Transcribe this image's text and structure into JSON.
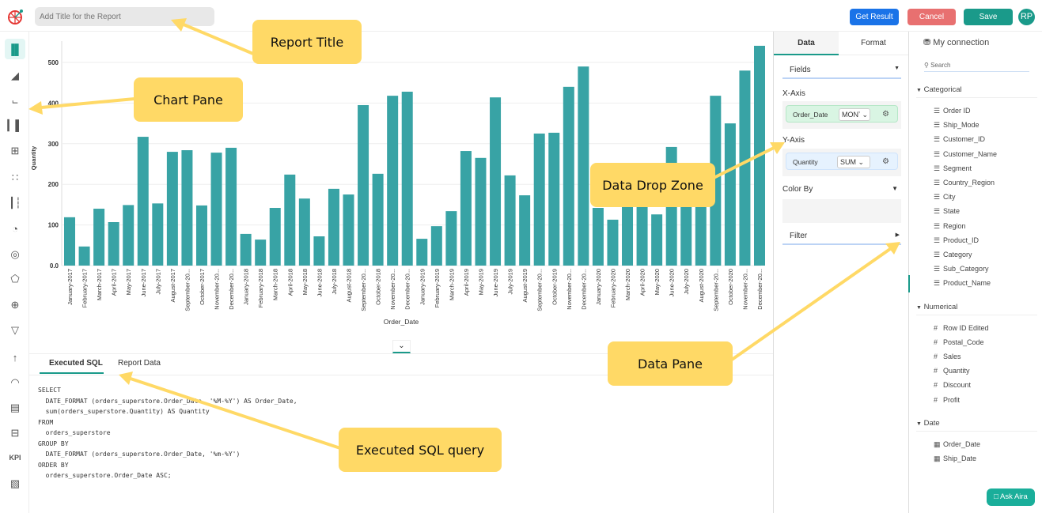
{
  "header": {
    "title_placeholder": "Add Title for the Report",
    "get_result": "Get Result",
    "cancel": "Cancel",
    "save": "Save",
    "avatar": "RP",
    "colors": {
      "get_result": "#1a73e8",
      "cancel": "#e87070",
      "save": "#1a9a8a"
    }
  },
  "chart_types": [
    "bar-chart-icon",
    "area-chart-icon",
    "line-chart-icon",
    "combo-chart-icon",
    "grid-chart-icon",
    "scatter-chart-icon",
    "waterfall-chart-icon",
    "pie-chart-icon",
    "donut-chart-icon",
    "radar-chart-icon",
    "map-globe-icon",
    "funnel-chart-icon",
    "sankey-chart-icon",
    "gauge-chart-icon",
    "pivot-table-icon",
    "table-icon",
    "kpi-icon",
    "geo-map-icon"
  ],
  "kpi_label": "KPI",
  "chart_data": {
    "type": "bar",
    "xlabel": "Order_Date",
    "ylabel": "Quantity",
    "ylim": [
      0,
      550
    ],
    "yticks": [
      "0.0",
      "100",
      "200",
      "300",
      "400",
      "500"
    ],
    "grid": true,
    "color": "#38a3a5",
    "categories": [
      "January-2017",
      "February-2017",
      "March-2017",
      "April-2017",
      "May-2017",
      "June-2017",
      "July-2017",
      "August-2017",
      "September-20...",
      "October-2017",
      "November-20...",
      "December-20...",
      "January-2018",
      "February-2018",
      "March-2018",
      "April-2018",
      "May-2018",
      "June-2018",
      "July-2018",
      "August-2018",
      "September-20...",
      "October-2018",
      "November-20...",
      "December-20...",
      "January-2019",
      "February-2019",
      "March-2019",
      "April-2019",
      "May-2019",
      "June-2019",
      "July-2019",
      "August-2019",
      "September-20...",
      "October-2019",
      "November-20...",
      "December-20...",
      "January-2020",
      "February-2020",
      "March-2020",
      "April-2020",
      "May-2020",
      "June-2020",
      "July-2020",
      "August-2020",
      "September-20...",
      "October-2020",
      "November-20...",
      "December-20..."
    ],
    "values": [
      119,
      47,
      140,
      107,
      149,
      317,
      153,
      280,
      284,
      148,
      278,
      290,
      78,
      64,
      142,
      224,
      165,
      72,
      189,
      175,
      395,
      226,
      418,
      428,
      66,
      97,
      134,
      282,
      265,
      414,
      222,
      173,
      325,
      327,
      440,
      490,
      142,
      113,
      150,
      160,
      126,
      292,
      180,
      190,
      418,
      350,
      480,
      541
    ]
  },
  "bottom": {
    "tabs": [
      "Executed SQL",
      "Report Data"
    ],
    "sql": "SELECT\n  DATE_FORMAT (orders_superstore.Order_Date, '%M-%Y') AS Order_Date,\n  sum(orders_superstore.Quantity) AS Quantity\nFROM\n  orders_superstore\nGROUP BY\n  DATE_FORMAT (orders_superstore.Order_Date, '%m-%Y')\nORDER BY\n  orders_superstore.Order_Date ASC;"
  },
  "config": {
    "tabs": [
      "Data",
      "Format"
    ],
    "fields": "Fields",
    "x_axis": "X-Axis",
    "x_field": "Order_Date",
    "x_agg": "MONʼ",
    "y_axis": "Y-Axis",
    "y_field": "Quantity",
    "y_agg": "SUM",
    "color_by": "Color By",
    "filter": "Filter"
  },
  "datapane": {
    "connection": "My connection",
    "search_placeholder": "Search",
    "groups": [
      {
        "name": "Categorical",
        "icon": "list-icon",
        "fields": [
          "Order ID",
          "Ship_Mode",
          "Customer_ID",
          "Customer_Name",
          "Segment",
          "Country_Region",
          "City",
          "State",
          "Region",
          "Product_ID",
          "Category",
          "Sub_Category",
          "Product_Name"
        ]
      },
      {
        "name": "Numerical",
        "icon": "hash-icon",
        "fields": [
          "Row ID Edited",
          "Postal_Code",
          "Sales",
          "Quantity",
          "Discount",
          "Profit"
        ]
      },
      {
        "name": "Date",
        "icon": "calendar-icon",
        "fields": [
          "Order_Date",
          "Ship_Date"
        ]
      }
    ]
  },
  "ask_aira": "Ask Aira",
  "annotations": {
    "report_title": "Report Title",
    "chart_pane": "Chart Pane",
    "data_drop_zone": "Data Drop Zone",
    "data_pane": "Data Pane",
    "executed_sql": "Executed SQL query",
    "color": "#ffd966"
  }
}
